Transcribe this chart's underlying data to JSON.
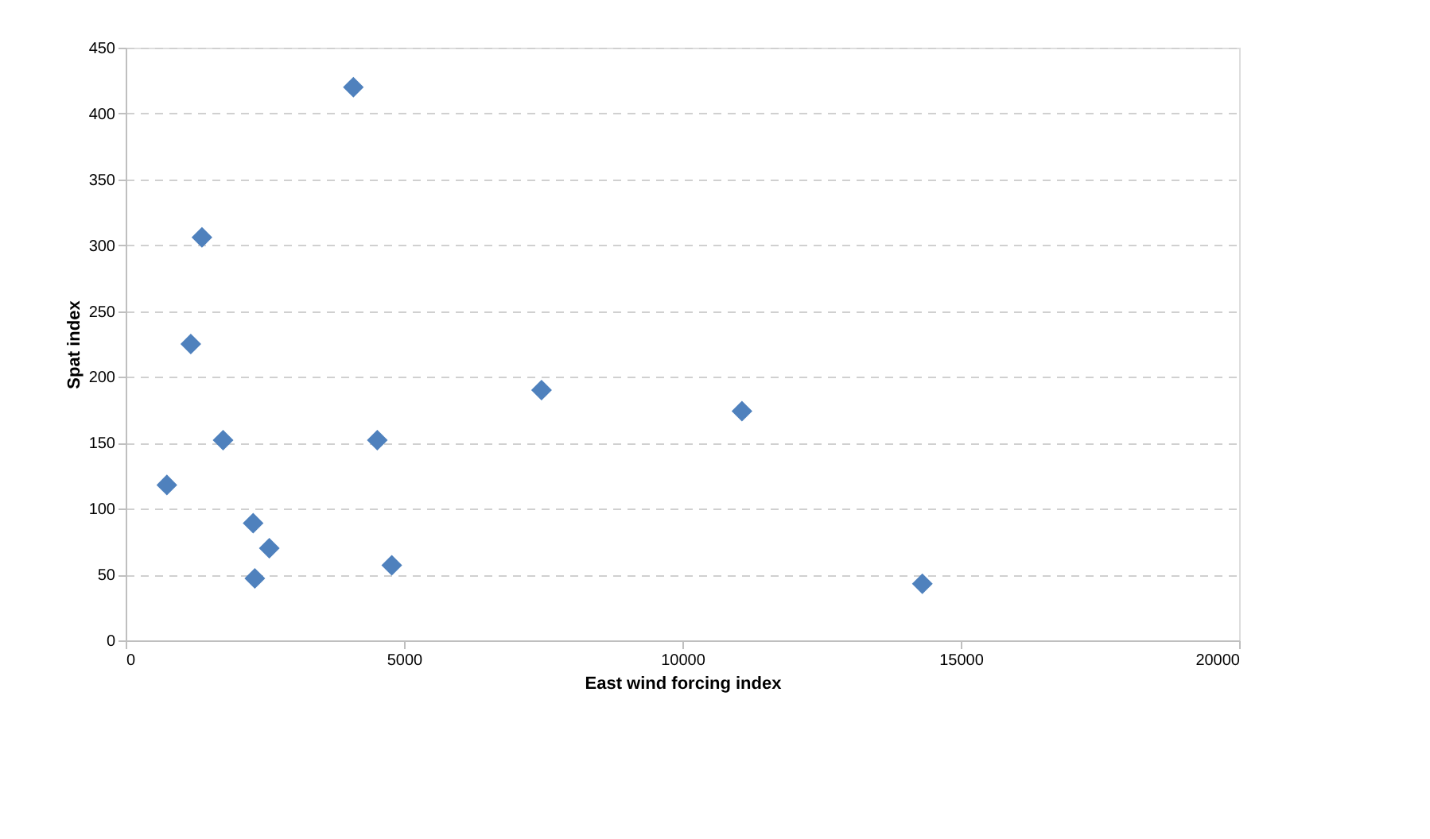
{
  "chart_data": {
    "type": "scatter",
    "xlabel": "East wind forcing index",
    "ylabel": "Spat index",
    "x": [
      4090,
      1370,
      1170,
      1750,
      740,
      2290,
      2580,
      2320,
      4520,
      4780,
      7470,
      11070,
      14310
    ],
    "series": [
      {
        "color": "#4f81bd",
        "values": [
          420,
          306,
          225,
          152,
          118,
          89,
          70,
          47,
          152,
          57,
          190,
          174,
          43
        ]
      }
    ],
    "xlim": [
      0,
      20000
    ],
    "xticks": [
      0,
      5000,
      10000,
      15000,
      20000
    ],
    "ylim": [
      0,
      450
    ],
    "yticks": [
      0,
      50,
      100,
      150,
      200,
      250,
      300,
      350,
      400,
      450
    ],
    "grid": "y",
    "marker": "diamond",
    "legend": false
  }
}
